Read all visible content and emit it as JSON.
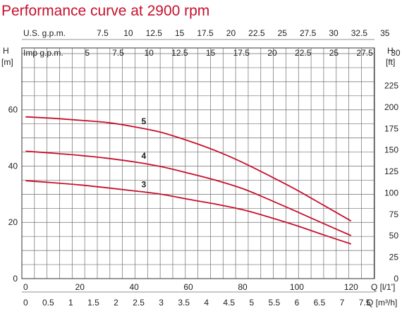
{
  "chart_data": {
    "type": "line",
    "title": "Performance curve at 2900 rpm",
    "colors": {
      "title": "#c8102e",
      "curves": "#c8102e",
      "grid": "#6f6f6f"
    },
    "grid": true,
    "axes": {
      "x_main": {
        "label": "Q [l/1']",
        "range": [
          0,
          130
        ],
        "ticks": [
          "0",
          "20",
          "40",
          "60",
          "80",
          "100",
          "120"
        ]
      },
      "x_m3h": {
        "label": "Q [m³/h]",
        "ticks": [
          "0",
          "0.5",
          "1",
          "1.5",
          "2",
          "2.5",
          "3",
          "3.5",
          "4",
          "4.5",
          "5",
          "5.5",
          "6",
          "6.5",
          "7",
          "7.5"
        ]
      },
      "x_us": {
        "label": "U.S. g.p.m.",
        "ticks": [
          "7.5",
          "10",
          "12.5",
          "15",
          "17.5",
          "20",
          "22.5",
          "25",
          "27.5",
          "30",
          "32.5",
          "35"
        ]
      },
      "x_imp": {
        "label": "Imp g.p.m.",
        "ticks": [
          "5",
          "7.5",
          "10",
          "12.5",
          "15",
          "17.5",
          "20",
          "22.5",
          "25",
          "27.5",
          "30"
        ]
      },
      "y_left": {
        "label": "H",
        "unit": "[m]",
        "range": [
          0,
          82
        ],
        "ticks": [
          "0",
          "20",
          "40",
          "60"
        ]
      },
      "y_right": {
        "label": "H",
        "unit": "[ft]",
        "ticks": [
          "0",
          "25",
          "50",
          "75",
          "100",
          "125",
          "150",
          "175",
          "200",
          "225"
        ]
      }
    },
    "series": [
      {
        "name": "5",
        "x": [
          0,
          10,
          20,
          30,
          40,
          50,
          60,
          70,
          80,
          90,
          100,
          110,
          120
        ],
        "y": [
          57.5,
          57,
          56.3,
          55.5,
          54,
          52,
          49,
          45.5,
          41.3,
          36.5,
          31.5,
          26,
          20.5
        ]
      },
      {
        "name": "4",
        "x": [
          0,
          10,
          20,
          30,
          40,
          50,
          60,
          70,
          80,
          90,
          100,
          110,
          120
        ],
        "y": [
          45.3,
          44.6,
          43.8,
          42.8,
          41.5,
          39.8,
          37.5,
          35,
          32,
          28,
          23.8,
          19.5,
          15.3
        ]
      },
      {
        "name": "3",
        "x": [
          0,
          10,
          20,
          30,
          40,
          50,
          60,
          70,
          80,
          90,
          100,
          110,
          120
        ],
        "y": [
          34.8,
          34.1,
          33.3,
          32.3,
          31.2,
          30,
          28.2,
          26.5,
          24.5,
          21.8,
          18.8,
          15.5,
          12.3
        ]
      }
    ]
  }
}
